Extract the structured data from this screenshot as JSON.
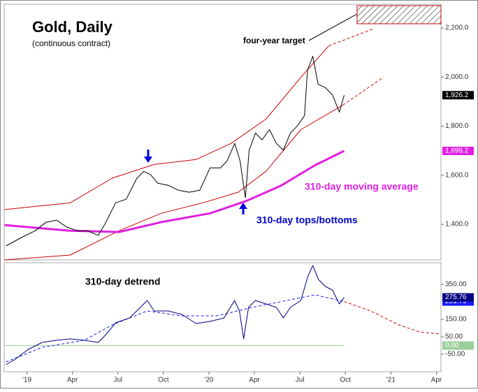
{
  "chart_data": [
    {
      "type": "line",
      "title": "Gold, Daily",
      "subtitle": "(continuous contract)",
      "annotations": [
        "four-year target",
        "310-day moving average",
        "310-day tops/bottoms"
      ],
      "xlim": [
        -1.5,
        27.3
      ],
      "ylim": [
        1255,
        2297
      ],
      "yticks": [
        {
          "value": 2200,
          "label": "2,200.0"
        },
        {
          "value": 2000,
          "label": "2,000.0"
        },
        {
          "value": 1800,
          "label": "1,800.0"
        },
        {
          "value": 1600,
          "label": "1,600.0"
        },
        {
          "value": 1400,
          "label": "1,400.0"
        }
      ],
      "series": [
        {
          "color": "#cc0000",
          "style": "solid",
          "x": [
            -1.5,
            2.86,
            5.62,
            8.39,
            11.15,
            13.46,
            15.76,
            18.06,
            19.9
          ],
          "values": [
            1460,
            1488,
            1588,
            1644,
            1664,
            1730,
            1829,
            1999,
            2127
          ]
        },
        {
          "color": "#cc0000",
          "style": "dashed",
          "x": [
            19.9,
            22.9
          ],
          "values": [
            2127,
            2198
          ]
        },
        {
          "color": "#cc0000",
          "style": "solid",
          "x": [
            -1.5,
            2.86,
            6.08,
            8.85,
            11.61,
            13.92,
            15.76,
            18.06,
            20.83
          ],
          "values": [
            1255,
            1275,
            1374,
            1445,
            1488,
            1531,
            1616,
            1786,
            1886
          ]
        },
        {
          "color": "#cc0000",
          "style": "dashed",
          "x": [
            20.83,
            23.5
          ],
          "values": [
            1886,
            1999
          ]
        },
        {
          "color": "#e020e0",
          "style": "thick",
          "x": [
            -1.47,
            2.86,
            6.08,
            8.85,
            12.07,
            14.4,
            16.7,
            19.0,
            20.92
          ],
          "values": [
            1397,
            1374,
            1369,
            1409,
            1445,
            1494,
            1556,
            1641,
            1699.2
          ],
          "value_labels": [
            null,
            null,
            null,
            null,
            null,
            null,
            null,
            null,
            "1,699.2"
          ]
        },
        {
          "color": "#000000",
          "style": "solid",
          "x": [
            -1.38,
            -0.37,
            0.55,
            1.24,
            1.94,
            2.63,
            3.32,
            4.0,
            4.7,
            5.16,
            5.85,
            6.54,
            7.24,
            7.7,
            8.16,
            8.62,
            9.31,
            10.0,
            10.7,
            11.4,
            12.07,
            12.76,
            13.2,
            13.7,
            14.05,
            14.4,
            14.65,
            15.07,
            15.5,
            15.99,
            16.45,
            16.9,
            17.37,
            17.83,
            18.3,
            18.5,
            18.85,
            19.2,
            19.68,
            20.14,
            20.6,
            20.92
          ],
          "values": [
            1312,
            1346,
            1374,
            1408,
            1417,
            1389,
            1374,
            1374,
            1355,
            1403,
            1488,
            1502,
            1587,
            1616,
            1602,
            1568,
            1559,
            1539,
            1531,
            1539,
            1630,
            1630,
            1659,
            1730,
            1659,
            1508,
            1702,
            1772,
            1744,
            1786,
            1730,
            1702,
            1772,
            1801,
            1843,
            2028,
            2085,
            1971,
            1957,
            1928,
            1857,
            1926.2
          ],
          "value_labels": [
            null,
            null,
            null,
            null,
            null,
            null,
            null,
            null,
            null,
            null,
            null,
            null,
            null,
            null,
            null,
            null,
            null,
            null,
            null,
            null,
            null,
            null,
            null,
            null,
            null,
            null,
            null,
            null,
            null,
            null,
            null,
            null,
            null,
            null,
            null,
            null,
            null,
            null,
            null,
            null,
            null,
            "1,926.2"
          ]
        }
      ]
    },
    {
      "type": "line",
      "title": "310-day detrend",
      "xlim": [
        -1.5,
        27.3
      ],
      "ylim": [
        -150,
        474
      ],
      "xticks": [
        {
          "value": 0,
          "label": "'19"
        },
        {
          "value": 3,
          "label": "Apr"
        },
        {
          "value": 6,
          "label": "Jul"
        },
        {
          "value": 9,
          "label": "Oct"
        },
        {
          "value": 12,
          "label": "'20"
        },
        {
          "value": 15,
          "label": "Apr"
        },
        {
          "value": 18,
          "label": "Jul"
        },
        {
          "value": 21,
          "label": "Oct"
        },
        {
          "value": 24,
          "label": "'21"
        },
        {
          "value": 27,
          "label": "Apr"
        }
      ],
      "yticks": [
        {
          "value": 350,
          "label": "350.00"
        },
        {
          "value": 150,
          "label": "150.00"
        },
        {
          "value": 50,
          "label": "50.00"
        },
        {
          "value": -50,
          "label": "-50.00"
        }
      ],
      "reference_line": {
        "value": 0,
        "label": "0.00",
        "color": "#9ccf9c"
      },
      "series": [
        {
          "color": "#1a1aff",
          "style": "dashed",
          "x": [
            -1.38,
            1.01,
            3.78,
            5.62,
            7.93,
            10.23,
            12.53,
            14.84,
            17.14,
            18.99,
            20.92
          ],
          "values": [
            -94,
            -10,
            30,
            118,
            198,
            170,
            170,
            218,
            258,
            290,
            251.79
          ],
          "value_labels": [
            null,
            null,
            null,
            null,
            null,
            null,
            null,
            null,
            null,
            null,
            "251.79"
          ]
        },
        {
          "color": "#000080",
          "style": "solid",
          "x": [
            -1.38,
            -0.83,
            0.09,
            1.01,
            1.94,
            2.86,
            3.78,
            4.7,
            5.16,
            5.85,
            6.77,
            7.47,
            7.93,
            8.39,
            9.31,
            10.23,
            11.15,
            12.07,
            12.99,
            13.69,
            14.01,
            14.29,
            14.61,
            15.07,
            15.76,
            16.45,
            16.91,
            17.37,
            18.06,
            18.53,
            18.85,
            19.22,
            19.68,
            20.14,
            20.6,
            20.92
          ],
          "values": [
            -110,
            -82,
            -22,
            18,
            30,
            38,
            30,
            18,
            58,
            130,
            158,
            218,
            258,
            198,
            198,
            178,
            126,
            138,
            158,
            258,
            198,
            38,
            218,
            258,
            238,
            218,
            158,
            218,
            258,
            398,
            458,
            378,
            338,
            318,
            238,
            275.76
          ],
          "value_labels": [
            null,
            null,
            null,
            null,
            null,
            null,
            null,
            null,
            null,
            null,
            null,
            null,
            null,
            null,
            null,
            null,
            null,
            null,
            null,
            null,
            null,
            null,
            null,
            null,
            null,
            null,
            null,
            null,
            null,
            null,
            null,
            null,
            null,
            null,
            null,
            "275.76"
          ]
        },
        {
          "color": "#dd0000",
          "style": "dashed",
          "x": [
            20.92,
            22.67,
            24.52,
            25.9,
            27.28
          ],
          "values": [
            251.79,
            198,
            118,
            78,
            66
          ]
        }
      ]
    }
  ]
}
